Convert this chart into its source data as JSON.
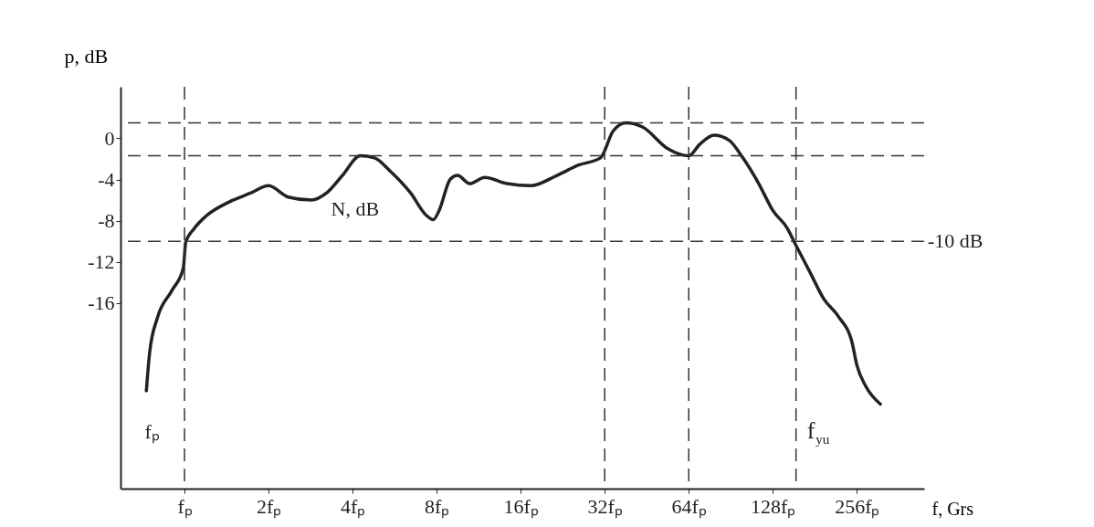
{
  "chart_data": {
    "type": "line",
    "xlabel": "f, Grs",
    "ylabel": "p, dB",
    "log": "x",
    "x": [
      0.73,
      0.75,
      0.8,
      0.9,
      0.99,
      1.01,
      1.08,
      1.2,
      1.44,
      1.73,
      2,
      2.35,
      2.85,
      3.23,
      3.68,
      4.26,
      4.79,
      5.46,
      6.45,
      7.36,
      7.78,
      8.17,
      8.94,
      9.51,
      10.5,
      11.9,
      14.3,
      17.4,
      21.6,
      25.8,
      30.9,
      34.3,
      38.1,
      43.7,
      53.8,
      64,
      70,
      78.8,
      89.3,
      100,
      114,
      128,
      144,
      155,
      174,
      195,
      220,
      246,
      256,
      276,
      311
    ],
    "series": [
      {
        "color": "#222222",
        "values": [
          -24.5,
          -20.8,
          -17.4,
          -14.8,
          -12.6,
          -10.1,
          -8.8,
          -7.5,
          -6.2,
          -5.3,
          -4.6,
          -5.7,
          -6.0,
          -5.3,
          -3.6,
          -1.7,
          -1.9,
          -3.2,
          -5.3,
          -7.5,
          -7.9,
          -7.0,
          -4.0,
          -3.6,
          -4.4,
          -3.8,
          -4.4,
          -4.6,
          -3.6,
          -2.6,
          -1.9,
          0.7,
          1.5,
          1.1,
          -1.0,
          -1.7,
          -0.6,
          0.3,
          -0.2,
          -1.9,
          -4.4,
          -7.0,
          -8.7,
          -10.4,
          -13.0,
          -15.6,
          -17.3,
          -19.8,
          -22.0,
          -24.1,
          -25.8
        ]
      }
    ],
    "xlim": [
      0.59,
      446
    ],
    "ylim": [
      -34,
      5
    ],
    "xticks": [
      {
        "value": 1,
        "label": "fₚ"
      },
      {
        "value": 2,
        "label": "2fₚ"
      },
      {
        "value": 4,
        "label": "4fₚ"
      },
      {
        "value": 8,
        "label": "8fₚ"
      },
      {
        "value": 16,
        "label": "16fₚ"
      },
      {
        "value": 32,
        "label": "32fₚ"
      },
      {
        "value": 64,
        "label": "64fₚ"
      },
      {
        "value": 128,
        "label": "128fₚ"
      },
      {
        "value": 256,
        "label": "256fₚ"
      }
    ],
    "yticks": [
      0,
      -4,
      -8,
      -12,
      -16
    ],
    "grid": false,
    "line_style": "solid",
    "marker": "none",
    "ref_lines": [
      {
        "axis": "y",
        "value": 1.5,
        "line_style": "dashed"
      },
      {
        "axis": "y",
        "value": -1.7,
        "line_style": "dashed"
      },
      {
        "axis": "y",
        "value": -10,
        "label": "-10 dB",
        "line_style": "dashed"
      },
      {
        "axis": "x",
        "value": 1,
        "line_style": "dashed"
      },
      {
        "axis": "x",
        "value": 32,
        "line_style": "dashed"
      },
      {
        "axis": "x",
        "value": 64,
        "line_style": "dashed"
      },
      {
        "axis": "x",
        "value": 155,
        "line_style": "dashed"
      }
    ],
    "annotations": [
      "N, dB",
      "fₚ",
      "f$_{yu}$"
    ]
  }
}
